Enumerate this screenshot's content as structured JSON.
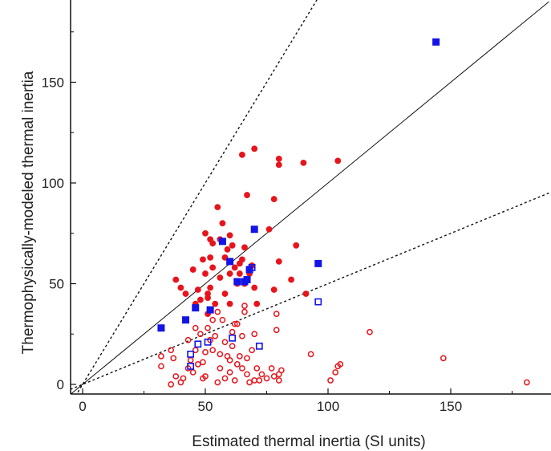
{
  "chart_data": {
    "type": "scatter",
    "title": "",
    "xlabel": "Estimated thermal inertia (SI units)",
    "ylabel": "Thermophysically-modeled thermal inertia",
    "xlim": [
      -5,
      190
    ],
    "ylim": [
      -5,
      190
    ],
    "x_ticks": [
      0,
      50,
      100,
      150
    ],
    "y_ticks": [
      0,
      50,
      100,
      150
    ],
    "grid": false,
    "legend": "none",
    "reference_lines": [
      {
        "kind": "solid",
        "slope": 1
      },
      {
        "kind": "dotted",
        "slope": 2
      },
      {
        "kind": "dotted",
        "slope": 0.5
      }
    ],
    "series": [
      {
        "marker": "filled-circle",
        "color": "#e8141c",
        "points": [
          [
            38,
            52
          ],
          [
            40,
            48
          ],
          [
            42,
            45
          ],
          [
            45,
            57
          ],
          [
            46,
            40
          ],
          [
            48,
            42
          ],
          [
            49,
            62
          ],
          [
            50,
            75
          ],
          [
            50,
            55
          ],
          [
            51,
            45
          ],
          [
            51,
            35
          ],
          [
            52,
            72
          ],
          [
            52,
            63
          ],
          [
            52,
            48
          ],
          [
            53,
            70
          ],
          [
            53,
            58
          ],
          [
            54,
            40
          ],
          [
            55,
            88
          ],
          [
            56,
            72
          ],
          [
            56,
            53
          ],
          [
            57,
            80
          ],
          [
            58,
            63
          ],
          [
            58,
            45
          ],
          [
            59,
            67
          ],
          [
            60,
            74
          ],
          [
            60,
            55
          ],
          [
            60,
            40
          ],
          [
            61,
            69
          ],
          [
            62,
            58
          ],
          [
            63,
            50
          ],
          [
            64,
            60
          ],
          [
            64,
            55
          ],
          [
            65,
            62
          ],
          [
            65,
            114
          ],
          [
            66,
            68
          ],
          [
            66,
            50
          ],
          [
            67,
            94
          ],
          [
            68,
            55
          ],
          [
            69,
            59
          ],
          [
            70,
            117
          ],
          [
            70,
            48
          ],
          [
            71,
            40
          ],
          [
            76,
            77
          ],
          [
            78,
            92
          ],
          [
            78,
            47
          ],
          [
            80,
            112
          ],
          [
            80,
            109
          ],
          [
            80,
            61
          ],
          [
            85,
            52
          ],
          [
            87,
            69
          ],
          [
            90,
            110
          ],
          [
            91,
            45
          ],
          [
            104,
            111
          ],
          [
            51,
            43
          ],
          [
            47,
            47
          ]
        ]
      },
      {
        "marker": "open-circle",
        "color": "#e8141c",
        "points": [
          [
            32,
            14
          ],
          [
            32,
            9
          ],
          [
            36,
            17
          ],
          [
            36,
            0
          ],
          [
            37,
            13
          ],
          [
            38,
            4
          ],
          [
            40,
            1
          ],
          [
            41,
            3
          ],
          [
            43,
            8
          ],
          [
            43,
            22
          ],
          [
            44,
            12
          ],
          [
            45,
            6
          ],
          [
            46,
            28
          ],
          [
            46,
            17
          ],
          [
            47,
            10
          ],
          [
            48,
            25
          ],
          [
            49,
            3
          ],
          [
            49,
            11
          ],
          [
            50,
            4
          ],
          [
            50,
            16
          ],
          [
            51,
            28
          ],
          [
            52,
            22
          ],
          [
            53,
            17
          ],
          [
            53,
            32
          ],
          [
            54,
            24
          ],
          [
            55,
            1
          ],
          [
            55,
            36
          ],
          [
            56,
            8
          ],
          [
            56,
            15
          ],
          [
            57,
            32
          ],
          [
            58,
            3
          ],
          [
            58,
            21
          ],
          [
            59,
            14
          ],
          [
            60,
            6
          ],
          [
            60,
            12
          ],
          [
            61,
            19
          ],
          [
            61,
            26
          ],
          [
            62,
            2
          ],
          [
            62,
            30
          ],
          [
            63,
            10
          ],
          [
            63,
            30
          ],
          [
            64,
            14
          ],
          [
            65,
            8
          ],
          [
            65,
            24
          ],
          [
            66,
            36
          ],
          [
            66,
            39
          ],
          [
            67,
            5
          ],
          [
            67,
            13
          ],
          [
            68,
            1
          ],
          [
            69,
            17
          ],
          [
            70,
            2
          ],
          [
            70,
            25
          ],
          [
            71,
            8
          ],
          [
            72,
            2
          ],
          [
            73,
            5
          ],
          [
            75,
            3
          ],
          [
            77,
            8
          ],
          [
            78,
            4
          ],
          [
            79,
            35
          ],
          [
            79,
            27
          ],
          [
            80,
            2
          ],
          [
            80,
            5
          ],
          [
            81,
            7
          ],
          [
            93,
            15
          ],
          [
            101,
            2
          ],
          [
            103,
            6
          ],
          [
            104,
            9
          ],
          [
            105,
            10
          ],
          [
            117,
            26
          ],
          [
            147,
            13
          ],
          [
            181,
            1
          ]
        ]
      },
      {
        "marker": "filled-square",
        "color": "#1414e6",
        "points": [
          [
            32,
            28
          ],
          [
            42,
            32
          ],
          [
            46,
            38
          ],
          [
            52,
            37
          ],
          [
            57,
            71
          ],
          [
            60,
            61
          ],
          [
            63,
            51
          ],
          [
            66,
            51
          ],
          [
            67,
            52
          ],
          [
            68,
            57
          ],
          [
            70,
            77
          ],
          [
            96,
            60
          ],
          [
            144,
            170
          ]
        ]
      },
      {
        "marker": "open-square",
        "color": "#1414e6",
        "points": [
          [
            44,
            9
          ],
          [
            44,
            15
          ],
          [
            47,
            20
          ],
          [
            51,
            21
          ],
          [
            61,
            23
          ],
          [
            69,
            58
          ],
          [
            72,
            19
          ],
          [
            96,
            41
          ]
        ]
      }
    ]
  }
}
